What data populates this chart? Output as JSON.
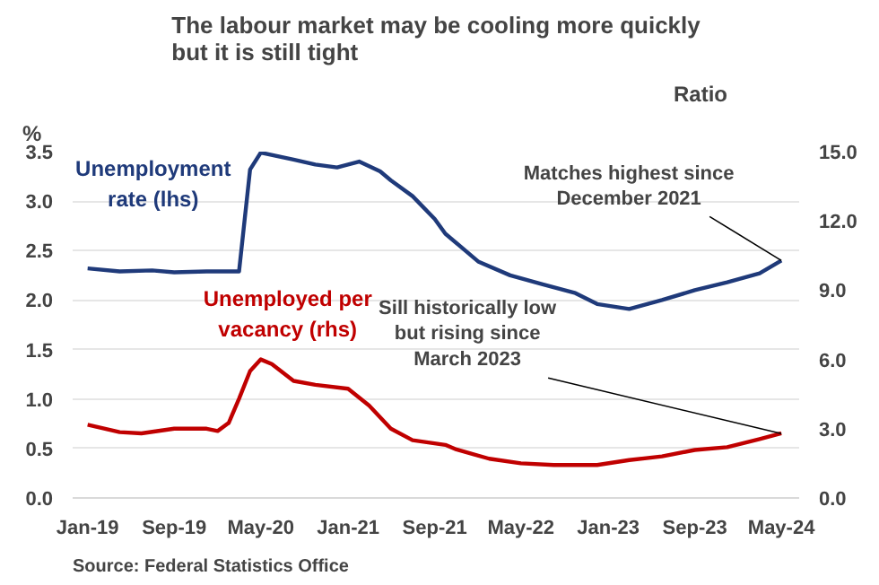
{
  "chart_data": {
    "type": "line",
    "title": "The labour market may be cooling more quickly but it is still tight",
    "ylabel": "%",
    "y2label": "Ratio",
    "xlim": [
      "2018-11-20",
      "2024-06-20"
    ],
    "xticks": [
      {
        "value": "2019-01",
        "label": "Jan-19"
      },
      {
        "value": "2019-09",
        "label": "Sep-19"
      },
      {
        "value": "2020-05",
        "label": "May-20"
      },
      {
        "value": "2021-01",
        "label": "Jan-21"
      },
      {
        "value": "2021-09",
        "label": "Sep-21"
      },
      {
        "value": "2022-05",
        "label": "May-22"
      },
      {
        "value": "2023-01",
        "label": "Jan-23"
      },
      {
        "value": "2023-09",
        "label": "Sep-23"
      },
      {
        "value": "2024-05",
        "label": "May-24"
      }
    ],
    "ylim": [
      0,
      3.5
    ],
    "yticks": [
      {
        "value": 0,
        "label": "0.0"
      },
      {
        "value": 0.5,
        "label": "0.5"
      },
      {
        "value": 1,
        "label": "1.0"
      },
      {
        "value": 1.5,
        "label": "1.5"
      },
      {
        "value": 2,
        "label": "2.0"
      },
      {
        "value": 2.5,
        "label": "2.5"
      },
      {
        "value": 3,
        "label": "3.0"
      },
      {
        "value": 3.5,
        "label": "3.5"
      }
    ],
    "y2lim": [
      0,
      15
    ],
    "y2ticks": [
      {
        "value": 0,
        "label": "0.0"
      },
      {
        "value": 3,
        "label": "3.0"
      },
      {
        "value": 6,
        "label": "6.0"
      },
      {
        "value": 9,
        "label": "9.0"
      },
      {
        "value": 12,
        "label": "12.0"
      },
      {
        "value": 15,
        "label": "15.0"
      }
    ],
    "grid": "y",
    "legend": false,
    "line_style": "solid",
    "series": [
      {
        "name": "Unemployment rate (lhs)",
        "color": "#1f3a7a",
        "x": [
          "2019-01",
          "2019-04",
          "2019-07",
          "2019-09",
          "2019-12",
          "2020-03",
          "2020-04",
          "2020-05",
          "2020-08",
          "2020-10",
          "2020-12",
          "2021-02",
          "2021-04",
          "2021-05",
          "2021-07",
          "2021-09",
          "2021-10",
          "2022-01",
          "2022-04",
          "2022-07",
          "2022-10",
          "2022-12",
          "2023-03",
          "2023-06",
          "2023-09",
          "2023-12",
          "2024-03",
          "2024-05"
        ],
        "values": [
          2.32,
          2.29,
          2.3,
          2.28,
          2.29,
          2.29,
          3.32,
          3.49,
          3.42,
          3.37,
          3.34,
          3.4,
          3.3,
          3.21,
          3.05,
          2.82,
          2.67,
          2.39,
          2.25,
          2.16,
          2.07,
          1.96,
          1.91,
          2.0,
          2.1,
          2.18,
          2.27,
          2.4
        ]
      },
      {
        "name": "Unemployed per vacancy (rhs)",
        "color": "#c00000",
        "axis": "y2",
        "x": [
          "2019-01",
          "2019-04",
          "2019-06",
          "2019-09",
          "2019-12",
          "2020-01",
          "2020-02",
          "2020-03",
          "2020-04",
          "2020-05",
          "2020-06",
          "2020-08",
          "2020-10",
          "2021-01",
          "2021-03",
          "2021-05",
          "2021-07",
          "2021-10",
          "2021-11",
          "2022-02",
          "2022-05",
          "2022-08",
          "2022-12",
          "2023-03",
          "2023-06",
          "2023-09",
          "2023-12",
          "2024-03",
          "2024-05"
        ],
        "values": [
          3.17,
          2.85,
          2.8,
          3.0,
          3.0,
          2.9,
          3.25,
          4.3,
          5.5,
          6.0,
          5.8,
          5.07,
          4.9,
          4.73,
          4.0,
          3.0,
          2.5,
          2.3,
          2.1,
          1.7,
          1.5,
          1.43,
          1.43,
          1.64,
          1.8,
          2.08,
          2.2,
          2.55,
          2.8
        ]
      }
    ],
    "annotations": [
      {
        "text": "Matches highest since December 2021",
        "x": "2024-05",
        "y": 2.4
      },
      {
        "text": "Sill historically low but rising since March 2023",
        "x": "2024-05",
        "y": 0.65
      },
      "Source: Federal Statistics Office"
    ]
  }
}
